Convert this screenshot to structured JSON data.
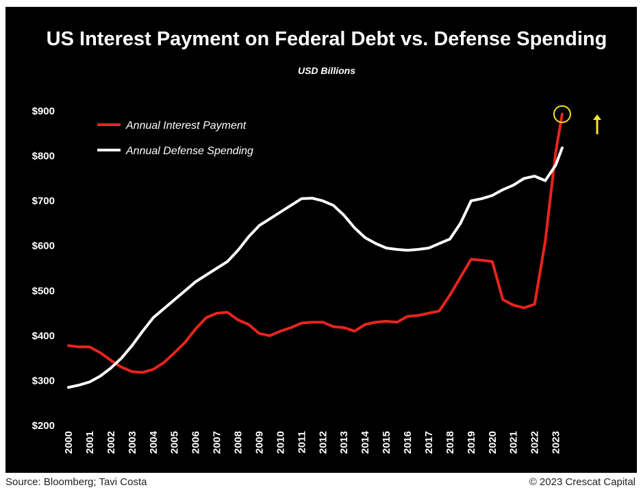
{
  "chart_data": {
    "type": "line",
    "title": "US Interest Payment on Federal Debt vs. Defense Spending",
    "subtitle": "USD Billions",
    "ylim": [
      200,
      900
    ],
    "yticks": [
      200,
      300,
      400,
      500,
      600,
      700,
      800,
      900
    ],
    "ytick_labels": [
      "$200",
      "$300",
      "$400",
      "$500",
      "$600",
      "$700",
      "$800",
      "$900"
    ],
    "xlim": [
      2000,
      2023.4
    ],
    "xticks": [
      "2000",
      "2001",
      "2002",
      "2003",
      "2004",
      "2005",
      "2006",
      "2007",
      "2008",
      "2009",
      "2010",
      "2011",
      "2012",
      "2013",
      "2014",
      "2015",
      "2016",
      "2017",
      "2018",
      "2019",
      "2020",
      "2021",
      "2022",
      "2023"
    ],
    "grid": false,
    "legend_position": "top-left",
    "series": [
      {
        "name": "Annual Interest Payment",
        "color": "#e8241d",
        "x": [
          2000,
          2000.5,
          2001,
          2001.5,
          2002,
          2002.5,
          2003,
          2003.5,
          2004,
          2004.5,
          2005,
          2005.5,
          2006,
          2006.5,
          2007,
          2007.5,
          2008,
          2008.5,
          2009,
          2009.5,
          2010,
          2010.5,
          2011,
          2011.5,
          2012,
          2012.5,
          2013,
          2013.5,
          2014,
          2014.5,
          2015,
          2015.5,
          2016,
          2016.5,
          2017,
          2017.5,
          2018,
          2018.5,
          2019,
          2019.5,
          2020,
          2020.5,
          2021,
          2021.5,
          2022,
          2022.5,
          2023,
          2023.3
        ],
        "values": [
          378,
          375,
          375,
          362,
          345,
          330,
          320,
          318,
          325,
          340,
          362,
          385,
          415,
          440,
          450,
          452,
          435,
          425,
          405,
          400,
          410,
          418,
          428,
          430,
          430,
          420,
          418,
          410,
          425,
          430,
          432,
          430,
          443,
          445,
          450,
          455,
          490,
          530,
          570,
          568,
          565,
          480,
          468,
          462,
          470,
          610,
          810,
          893
        ]
      },
      {
        "name": "Annual Defense Spending",
        "color": "#ffffff",
        "x": [
          2000,
          2000.5,
          2001,
          2001.5,
          2002,
          2002.5,
          2003,
          2003.5,
          2004,
          2004.5,
          2005,
          2005.5,
          2006,
          2006.5,
          2007,
          2007.5,
          2008,
          2008.5,
          2009,
          2009.5,
          2010,
          2010.5,
          2011,
          2011.5,
          2012,
          2012.5,
          2013,
          2013.5,
          2014,
          2014.5,
          2015,
          2015.5,
          2016,
          2016.5,
          2017,
          2017.5,
          2018,
          2018.5,
          2019,
          2019.5,
          2020,
          2020.5,
          2021,
          2021.5,
          2022,
          2022.5,
          2023,
          2023.3
        ],
        "values": [
          285,
          290,
          297,
          310,
          328,
          350,
          378,
          410,
          440,
          460,
          480,
          500,
          520,
          535,
          550,
          565,
          590,
          620,
          645,
          660,
          675,
          690,
          705,
          706,
          700,
          690,
          668,
          640,
          618,
          605,
          595,
          592,
          590,
          592,
          595,
          605,
          615,
          650,
          700,
          705,
          712,
          725,
          735,
          750,
          755,
          745,
          780,
          818
        ]
      }
    ],
    "annotations": [
      {
        "type": "circle",
        "x": 2023.3,
        "y": 893,
        "color": "#f5e22e"
      },
      {
        "type": "arrow-up",
        "color": "#f5e22e"
      }
    ]
  },
  "footer": {
    "source": "Source: Bloomberg; Tavi Costa",
    "copyright": "© 2023 Crescat Capital"
  }
}
